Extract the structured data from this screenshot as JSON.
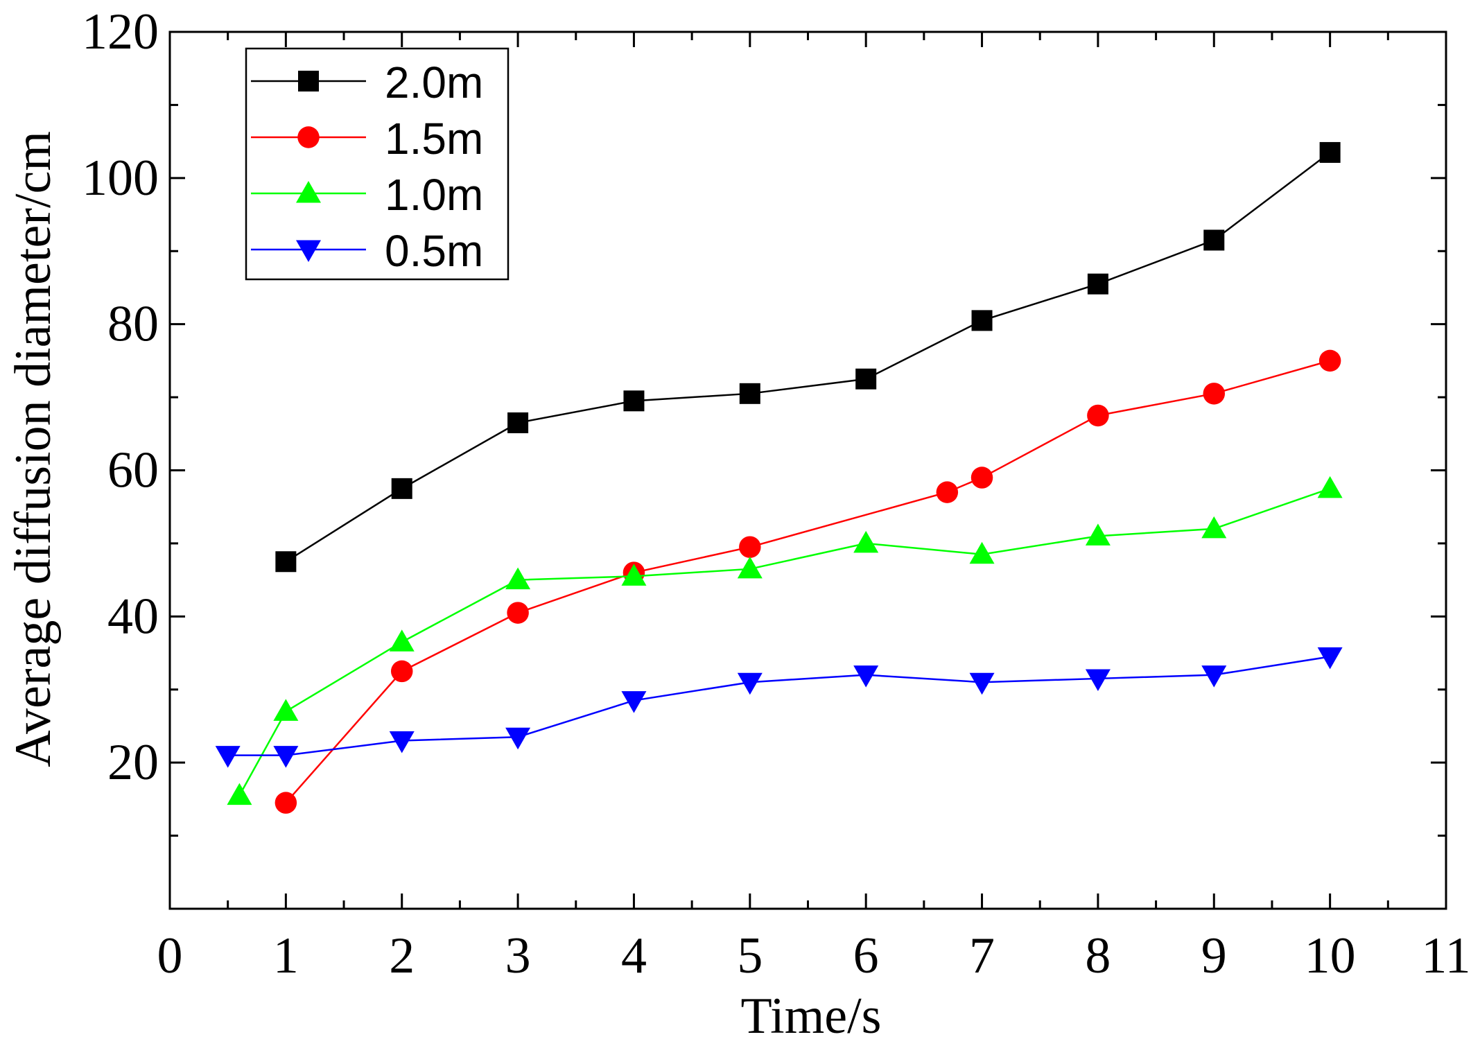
{
  "chart_data": {
    "type": "line",
    "title": "",
    "xlabel": "Time/s",
    "ylabel": "Average diffusion diameter/cm",
    "xlim": [
      0,
      11
    ],
    "ylim": [
      0,
      120
    ],
    "x_ticks": [
      0,
      1,
      2,
      3,
      4,
      5,
      6,
      7,
      8,
      9,
      10,
      11
    ],
    "y_ticks": [
      20,
      40,
      60,
      80,
      100,
      120
    ],
    "legend_position": "top-left",
    "series": [
      {
        "name": "2.0m",
        "color": "#000000",
        "marker": "square",
        "points": [
          [
            1,
            47.5
          ],
          [
            2,
            57.5
          ],
          [
            3,
            66.5
          ],
          [
            4,
            69.5
          ],
          [
            5,
            70.5
          ],
          [
            6,
            72.5
          ],
          [
            7,
            80.5
          ],
          [
            8,
            85.5
          ],
          [
            9,
            91.5
          ],
          [
            10,
            103.5
          ]
        ]
      },
      {
        "name": "1.5m",
        "color": "#ff0000",
        "marker": "circle",
        "points": [
          [
            1,
            14.5
          ],
          [
            2,
            32.5
          ],
          [
            3,
            40.5
          ],
          [
            4,
            46
          ],
          [
            5,
            49.5
          ],
          [
            6.7,
            57
          ],
          [
            7,
            59
          ],
          [
            8,
            67.5
          ],
          [
            9,
            70.5
          ],
          [
            10,
            75
          ]
        ]
      },
      {
        "name": "1.0m",
        "color": "#00ff00",
        "marker": "triangle-up",
        "points": [
          [
            0.6,
            15.5
          ],
          [
            1,
            27
          ],
          [
            2,
            36.5
          ],
          [
            3,
            45
          ],
          [
            4,
            45.5
          ],
          [
            5,
            46.5
          ],
          [
            6,
            50
          ],
          [
            7,
            48.5
          ],
          [
            8,
            51
          ],
          [
            9,
            52
          ],
          [
            10,
            57.5
          ]
        ]
      },
      {
        "name": "0.5m",
        "color": "#0000ff",
        "marker": "triangle-down",
        "points": [
          [
            0.5,
            21
          ],
          [
            1,
            21
          ],
          [
            2,
            23
          ],
          [
            3,
            23.5
          ],
          [
            4,
            28.5
          ],
          [
            5,
            31
          ],
          [
            6,
            32
          ],
          [
            7,
            31
          ],
          [
            8,
            31.5
          ],
          [
            9,
            32
          ],
          [
            10,
            34.5
          ]
        ]
      }
    ]
  }
}
